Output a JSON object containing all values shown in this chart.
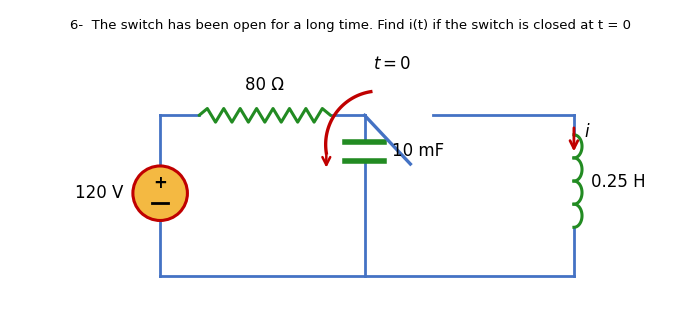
{
  "title": "6-  The switch has been open for a long time. Find i(t) if the switch is closed at t = 0",
  "title_fontsize": 9.5,
  "bg_color": "#ffffff",
  "wire_color": "#4472c4",
  "resistor_color": "#228B22",
  "inductor_color": "#228B22",
  "capacitor_color": "#228B22",
  "switch_blue_color": "#4472c4",
  "switch_red_color": "#c00000",
  "arrow_color": "#c00000",
  "vs_fill": "#f4b942",
  "vs_edge": "#c00000",
  "resistor_label": "80 Ω",
  "capacitor_label": "10 mF",
  "inductor_label": "0.25 H",
  "voltage_label": "120 V",
  "switch_label": "t = 0",
  "current_label": "i",
  "line_width": 2.0
}
